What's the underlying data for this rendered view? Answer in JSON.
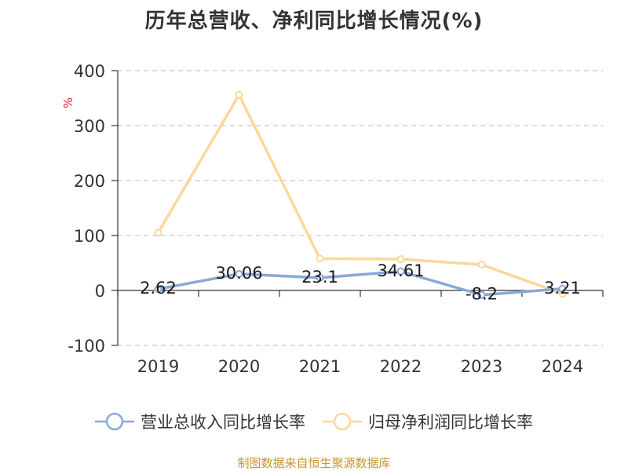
{
  "chart_data": {
    "type": "line",
    "title": "历年总营收、净利同比增长情况(%)",
    "ylabel": "%",
    "categories": [
      "2019",
      "2020",
      "2021",
      "2022",
      "2023",
      "2024"
    ],
    "ylim": [
      -100,
      400
    ],
    "yticks": [
      "400",
      "300",
      "200",
      "100",
      "0",
      "-100"
    ],
    "grid": true,
    "legend_position": "bottom",
    "series": [
      {
        "name": "营业总收入同比增长率",
        "values": [
          2.62,
          30.06,
          23.1,
          34.61,
          -8.2,
          3.21
        ],
        "labels": [
          "2.62",
          "30.06",
          "23.1",
          "34.61",
          "-8.2",
          "3.21"
        ],
        "color": "#8aa8d8"
      },
      {
        "name": "归母净利润同比增长率",
        "values": [
          105,
          356,
          58,
          57,
          47,
          -6
        ],
        "color": "#fbd89a"
      }
    ]
  },
  "source": "制图数据来自恒生聚源数据库"
}
